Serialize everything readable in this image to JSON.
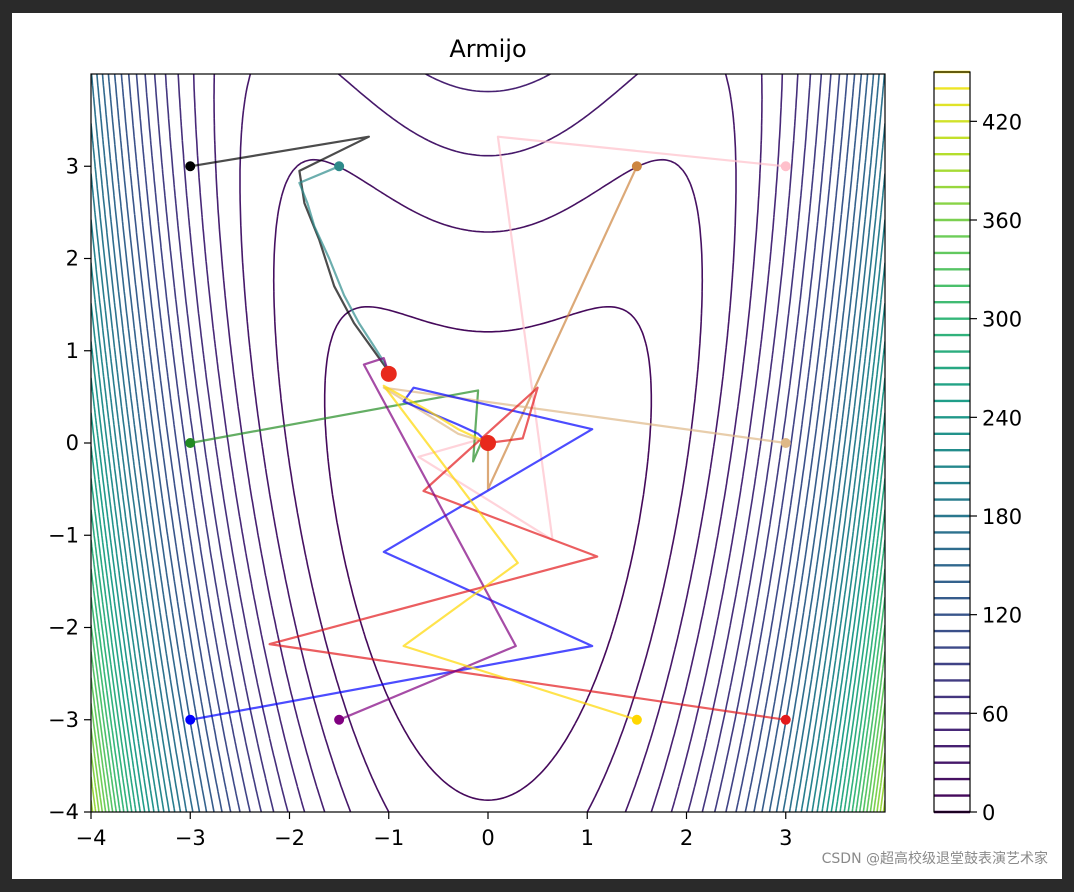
{
  "chart_data": {
    "type": "line",
    "title": "Armijo",
    "xlabel": "",
    "ylabel": "",
    "xlim": [
      -4,
      4
    ],
    "ylim": [
      -4,
      4
    ],
    "x_ticks": [
      -4,
      -3,
      -2,
      -1,
      0,
      1,
      2,
      3
    ],
    "y_ticks": [
      -4,
      -3,
      -2,
      -1,
      0,
      1,
      2,
      3
    ],
    "x_tick_labels": [
      "−4",
      "−3",
      "−2",
      "−1",
      "0",
      "1",
      "2",
      "3"
    ],
    "y_tick_labels": [
      "−4",
      "−3",
      "−2",
      "−1",
      "0",
      "1",
      "2",
      "3"
    ],
    "contour": {
      "function": "(x^2 - y)^2 + 0.5*(y + 4)^2 - 5",
      "levels_min": 0,
      "levels_max": 450,
      "level_step": 10,
      "colormap": "viridis"
    },
    "colorbar": {
      "range": [
        0,
        450
      ],
      "tick_values": [
        0,
        60,
        120,
        180,
        240,
        300,
        360,
        420
      ],
      "tick_labels": [
        "0",
        "60",
        "120",
        "180",
        "240",
        "300",
        "360",
        "420"
      ]
    },
    "minima": [
      {
        "x": -1,
        "y": 0.75,
        "color": "#e8291c"
      },
      {
        "x": 0,
        "y": 0,
        "color": "#e8291c"
      }
    ],
    "series": [
      {
        "color": "#000000",
        "points": [
          [
            -3,
            3
          ],
          [
            -1.2,
            3.32
          ],
          [
            -1.9,
            2.95
          ],
          [
            -1.85,
            2.6
          ],
          [
            -1.7,
            2.2
          ],
          [
            -1.55,
            1.7
          ],
          [
            -1.35,
            1.3
          ],
          [
            -1.15,
            1.0
          ],
          [
            -1.03,
            0.82
          ]
        ]
      },
      {
        "color": "#2e8b8b",
        "points": [
          [
            -1.5,
            3
          ],
          [
            -1.9,
            2.82
          ],
          [
            -1.82,
            2.6
          ],
          [
            -1.75,
            2.35
          ],
          [
            -1.6,
            2.0
          ],
          [
            -1.45,
            1.6
          ],
          [
            -1.3,
            1.3
          ],
          [
            -1.15,
            1.05
          ],
          [
            -1.05,
            0.88
          ],
          [
            -1.0,
            0.78
          ]
        ]
      },
      {
        "color": "#cd853f",
        "points": [
          [
            1.5,
            3
          ],
          [
            0.0,
            -0.5
          ],
          [
            0.0,
            0.0
          ]
        ]
      },
      {
        "color": "#ffc0cb",
        "points": [
          [
            3,
            3
          ],
          [
            0.1,
            3.32
          ],
          [
            0.65,
            -1.05
          ],
          [
            -0.7,
            -0.15
          ],
          [
            -0.05,
            0.05
          ],
          [
            0.0,
            0.0
          ]
        ]
      },
      {
        "color": "#228b22",
        "points": [
          [
            -3,
            0
          ],
          [
            -0.1,
            0.57
          ],
          [
            -0.15,
            -0.2
          ],
          [
            -0.05,
            0.05
          ],
          [
            0.0,
            0.0
          ]
        ]
      },
      {
        "color": "#deb887",
        "points": [
          [
            3,
            0
          ],
          [
            -1.05,
            0.6
          ],
          [
            -0.6,
            0.3
          ],
          [
            -0.3,
            0.1
          ],
          [
            0.0,
            0.0
          ]
        ]
      },
      {
        "color": "#0000ff",
        "points": [
          [
            -3,
            -3
          ],
          [
            1.05,
            -2.2
          ],
          [
            -1.05,
            -1.18
          ],
          [
            1.05,
            0.15
          ],
          [
            -0.75,
            0.6
          ],
          [
            -0.85,
            0.45
          ],
          [
            -0.3,
            0.2
          ],
          [
            -0.1,
            0.1
          ],
          [
            0.0,
            0.0
          ]
        ]
      },
      {
        "color": "#e31a1c",
        "points": [
          [
            3,
            -3
          ],
          [
            -2.2,
            -2.18
          ],
          [
            1.1,
            -1.23
          ],
          [
            -0.65,
            -0.52
          ],
          [
            0.5,
            0.6
          ],
          [
            0.35,
            0.05
          ],
          [
            0.0,
            0.0
          ]
        ]
      },
      {
        "color": "#800080",
        "points": [
          [
            -1.5,
            -3
          ],
          [
            0.28,
            -2.2
          ],
          [
            -1.25,
            0.85
          ],
          [
            -1.05,
            0.92
          ],
          [
            -1.0,
            0.75
          ]
        ]
      },
      {
        "color": "#ffd700",
        "points": [
          [
            1.5,
            -3
          ],
          [
            -0.85,
            -2.2
          ],
          [
            0.3,
            -1.3
          ],
          [
            -1.05,
            0.62
          ],
          [
            -0.6,
            0.35
          ],
          [
            -0.3,
            0.15
          ],
          [
            0.0,
            0.0
          ]
        ]
      }
    ]
  }
}
